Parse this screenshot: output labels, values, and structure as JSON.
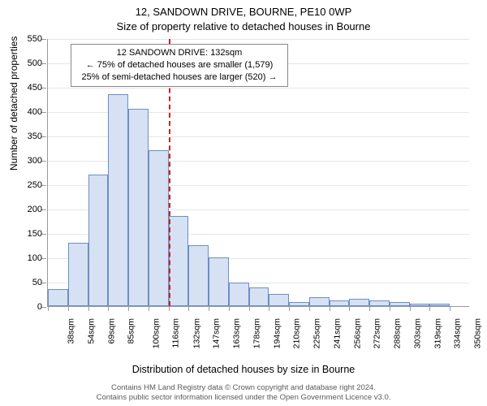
{
  "title": "12, SANDOWN DRIVE, BOURNE, PE10 0WP",
  "subtitle": "Size of property relative to detached houses in Bourne",
  "ylabel": "Number of detached properties",
  "xlabel": "Distribution of detached houses by size in Bourne",
  "footer_line1": "Contains HM Land Registry data © Crown copyright and database right 2024.",
  "footer_line2": "Contains public sector information licensed under the Open Government Licence v3.0.",
  "annotation": {
    "line1": "12 SANDOWN DRIVE: 132sqm",
    "line2": "← 75% of detached houses are smaller (1,579)",
    "line3": "25% of semi-detached houses are larger (520) →"
  },
  "chart": {
    "type": "histogram",
    "ymax": 550,
    "ytick_step": 50,
    "bar_fill": "#d6e1f4",
    "bar_border": "#6b8fc6",
    "grid_color": "#e6e6e6",
    "axis_color": "#9a9a9a",
    "refline_color": "#d02020",
    "refline_x_category": "132sqm",
    "categories": [
      "38sqm",
      "54sqm",
      "69sqm",
      "85sqm",
      "100sqm",
      "116sqm",
      "132sqm",
      "147sqm",
      "163sqm",
      "178sqm",
      "194sqm",
      "210sqm",
      "225sqm",
      "241sqm",
      "256sqm",
      "272sqm",
      "288sqm",
      "303sqm",
      "319sqm",
      "334sqm",
      "350sqm"
    ],
    "values": [
      35,
      130,
      270,
      435,
      405,
      320,
      185,
      125,
      100,
      48,
      38,
      25,
      8,
      18,
      12,
      15,
      12,
      8,
      5,
      5
    ]
  }
}
